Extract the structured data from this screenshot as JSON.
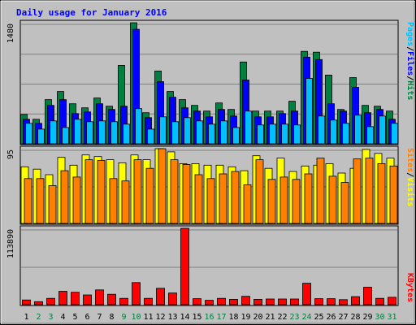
{
  "chart_data": {
    "type": "bar",
    "title": "Daily usage for January 2016",
    "days": [
      "1",
      "2",
      "3",
      "4",
      "5",
      "6",
      "7",
      "8",
      "9",
      "10",
      "11",
      "12",
      "13",
      "14",
      "15",
      "16",
      "17",
      "18",
      "19",
      "20",
      "21",
      "22",
      "23",
      "24",
      "25",
      "26",
      "27",
      "28",
      "29",
      "30",
      "31"
    ],
    "weekend_days": [
      "2",
      "3",
      "9",
      "10",
      "16",
      "17",
      "23",
      "24",
      "30",
      "31"
    ],
    "panels": [
      {
        "id": "hits-files-pages",
        "scale_label": "1480",
        "ymax": 1480,
        "series": [
          {
            "name": "Hits",
            "color": "#008040",
            "values": [
              360,
              300,
              540,
              640,
              490,
              440,
              560,
              460,
              960,
              1480,
              380,
              890,
              640,
              540,
              470,
              400,
              500,
              420,
              1000,
              400,
              400,
              400,
              520,
              1130,
              1120,
              840,
              420,
              810,
              470,
              460,
              400
            ]
          },
          {
            "name": "Files",
            "color": "#0000ff",
            "values": [
              300,
              250,
              470,
              540,
              370,
              390,
              490,
              420,
              460,
              1400,
              320,
              760,
              570,
              440,
              400,
              330,
              420,
              340,
              780,
              330,
              330,
              370,
              400,
              1060,
              1030,
              490,
              400,
              690,
              380,
              420,
              300
            ]
          },
          {
            "name": "Pages",
            "color": "#00c0ff",
            "values": [
              250,
              180,
              280,
              200,
              300,
              270,
              280,
              270,
              240,
              430,
              180,
              330,
              270,
              320,
              280,
              240,
              280,
              200,
              400,
              230,
              240,
              240,
              230,
              800,
              340,
              290,
              250,
              350,
              210,
              340,
              250
            ]
          }
        ]
      },
      {
        "id": "visits-sites",
        "scale_label": "95",
        "ymax": 95,
        "series": [
          {
            "name": "Visits",
            "color": "#ffff00",
            "values": [
              72,
              69,
              62,
              84,
              74,
              87,
              85,
              81,
              77,
              87,
              81,
              95,
              91,
              76,
              76,
              74,
              74,
              72,
              67,
              86,
              70,
              83,
              66,
              73,
              74,
              76,
              64,
              70,
              94,
              89,
              83
            ]
          },
          {
            "name": "Sites",
            "color": "#ff8000",
            "values": [
              57,
              57,
              48,
              67,
              59,
              81,
              80,
              57,
              54,
              81,
              70,
              95,
              81,
              75,
              62,
              57,
              63,
              66,
              49,
              81,
              56,
              59,
              56,
              63,
              83,
              60,
              52,
              82,
              83,
              76,
              73
            ]
          }
        ]
      },
      {
        "id": "kbytes",
        "scale_label": "113890",
        "ymax": 113890,
        "series": [
          {
            "name": "KBytes",
            "color": "#ff0000",
            "values": [
              7000,
              4500,
              9500,
              20000,
              18500,
              14500,
              22000,
              15500,
              9500,
              33000,
              9500,
              24500,
              17500,
              113890,
              9000,
              6500,
              9500,
              8000,
              12500,
              8000,
              8500,
              8500,
              8500,
              32000,
              9000,
              9000,
              7500,
              12000,
              26000,
              9500,
              11000
            ]
          }
        ]
      }
    ],
    "legend_separator": "/",
    "grid": true
  },
  "colors": {
    "background": "#c0c0c0",
    "plot_background": "#c0c0c0",
    "title": "#0000ff",
    "weekday_label": "#000000",
    "weekend_label": "#008040",
    "gridline": "#808080"
  }
}
